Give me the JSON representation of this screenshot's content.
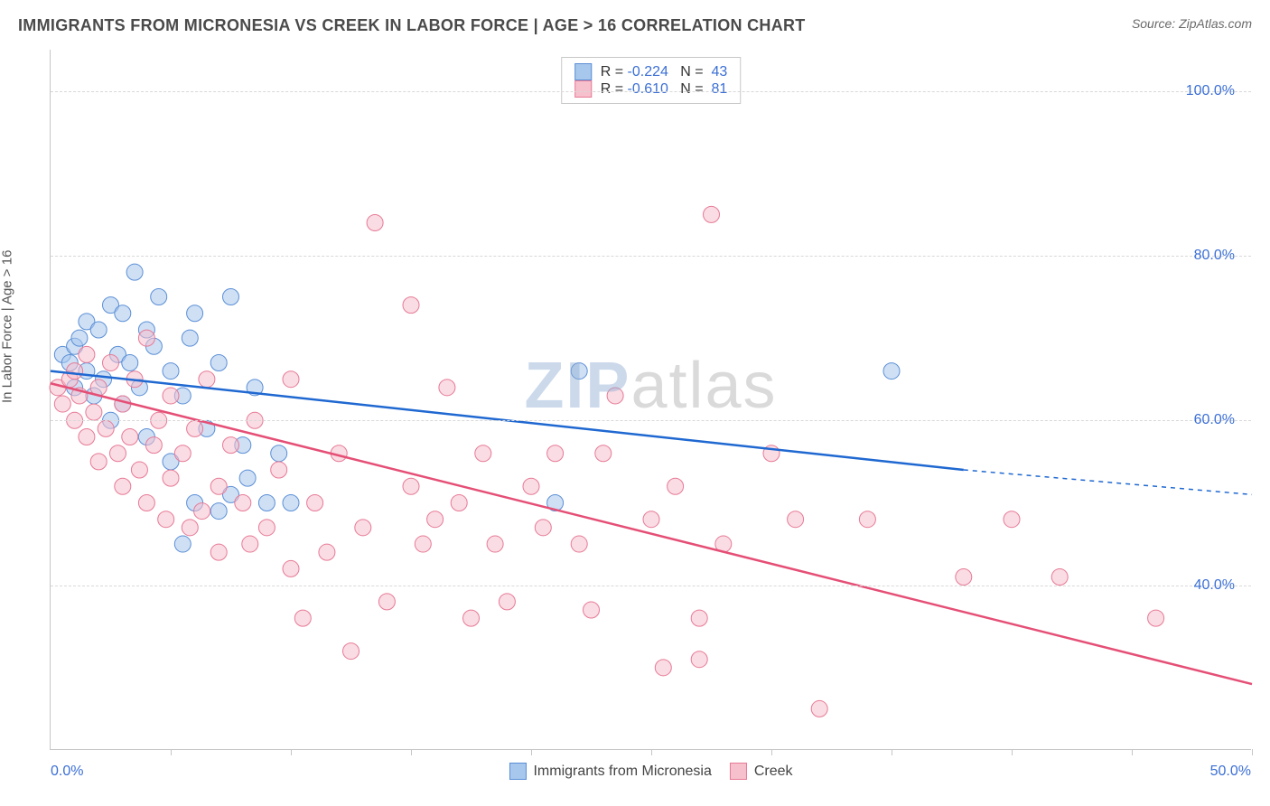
{
  "title": "IMMIGRANTS FROM MICRONESIA VS CREEK IN LABOR FORCE | AGE > 16 CORRELATION CHART",
  "source": "Source: ZipAtlas.com",
  "y_axis_label": "In Labor Force | Age > 16",
  "watermark": {
    "bold": "ZIP",
    "rest": "atlas"
  },
  "chart": {
    "type": "scatter",
    "background_color": "#ffffff",
    "grid_color": "#d8d8d8",
    "axis_color": "#c6c6c6",
    "label_color": "#3b6fd6",
    "xlim": [
      0,
      50
    ],
    "ylim": [
      20,
      105
    ],
    "xtick_positions": [
      0,
      5,
      10,
      15,
      20,
      25,
      30,
      35,
      40,
      45,
      50
    ],
    "xtick_labels": {
      "left": "0.0%",
      "right": "50.0%"
    },
    "yticks": [
      {
        "v": 40,
        "label": "40.0%"
      },
      {
        "v": 60,
        "label": "60.0%"
      },
      {
        "v": 80,
        "label": "80.0%"
      },
      {
        "v": 100,
        "label": "100.0%"
      }
    ],
    "marker_radius": 9,
    "marker_opacity": 0.55,
    "line_width": 2.5,
    "series": [
      {
        "name": "Immigrants from Micronesia",
        "color_fill": "#a7c7ec",
        "color_stroke": "#5b8fd6",
        "line_color": "#1f68d1",
        "R": "-0.224",
        "N": "43",
        "regression": {
          "x1": 0,
          "y1": 66,
          "x2": 38,
          "y2": 54,
          "dash_x2": 50,
          "dash_y2": 51
        },
        "points": [
          [
            0.5,
            68
          ],
          [
            0.8,
            67
          ],
          [
            1,
            69
          ],
          [
            1,
            64
          ],
          [
            1.2,
            70
          ],
          [
            1.5,
            72
          ],
          [
            1.5,
            66
          ],
          [
            1.8,
            63
          ],
          [
            2,
            71
          ],
          [
            2.2,
            65
          ],
          [
            2.5,
            74
          ],
          [
            2.5,
            60
          ],
          [
            2.8,
            68
          ],
          [
            3,
            73
          ],
          [
            3,
            62
          ],
          [
            3.3,
            67
          ],
          [
            3.5,
            78
          ],
          [
            3.7,
            64
          ],
          [
            4,
            71
          ],
          [
            4,
            58
          ],
          [
            4.3,
            69
          ],
          [
            4.5,
            75
          ],
          [
            5,
            66
          ],
          [
            5,
            55
          ],
          [
            5.5,
            63
          ],
          [
            5.8,
            70
          ],
          [
            6,
            73
          ],
          [
            6,
            50
          ],
          [
            6.5,
            59
          ],
          [
            7,
            67
          ],
          [
            7.5,
            75
          ],
          [
            8,
            57
          ],
          [
            8.2,
            53
          ],
          [
            8.5,
            64
          ],
          [
            9,
            50
          ],
          [
            9.5,
            56
          ],
          [
            10,
            50
          ],
          [
            5.5,
            45
          ],
          [
            7,
            49
          ],
          [
            7.5,
            51
          ],
          [
            22,
            66
          ],
          [
            21,
            50
          ],
          [
            35,
            66
          ]
        ]
      },
      {
        "name": "Creek",
        "color_fill": "#f6c0cd",
        "color_stroke": "#e77a96",
        "line_color": "#e54f76",
        "R": "-0.610",
        "N": "81",
        "regression": {
          "x1": 0,
          "y1": 64.5,
          "x2": 50,
          "y2": 28
        },
        "points": [
          [
            0.3,
            64
          ],
          [
            0.5,
            62
          ],
          [
            0.8,
            65
          ],
          [
            1,
            66
          ],
          [
            1,
            60
          ],
          [
            1.2,
            63
          ],
          [
            1.5,
            68
          ],
          [
            1.5,
            58
          ],
          [
            1.8,
            61
          ],
          [
            2,
            64
          ],
          [
            2,
            55
          ],
          [
            2.3,
            59
          ],
          [
            2.5,
            67
          ],
          [
            2.8,
            56
          ],
          [
            3,
            62
          ],
          [
            3,
            52
          ],
          [
            3.3,
            58
          ],
          [
            3.5,
            65
          ],
          [
            3.7,
            54
          ],
          [
            4,
            70
          ],
          [
            4,
            50
          ],
          [
            4.3,
            57
          ],
          [
            4.5,
            60
          ],
          [
            4.8,
            48
          ],
          [
            5,
            63
          ],
          [
            5,
            53
          ],
          [
            5.5,
            56
          ],
          [
            5.8,
            47
          ],
          [
            6,
            59
          ],
          [
            6.3,
            49
          ],
          [
            6.5,
            65
          ],
          [
            7,
            52
          ],
          [
            7,
            44
          ],
          [
            7.5,
            57
          ],
          [
            8,
            50
          ],
          [
            8.3,
            45
          ],
          [
            8.5,
            60
          ],
          [
            9,
            47
          ],
          [
            9.5,
            54
          ],
          [
            10,
            65
          ],
          [
            10,
            42
          ],
          [
            10.5,
            36
          ],
          [
            11,
            50
          ],
          [
            11.5,
            44
          ],
          [
            12,
            56
          ],
          [
            12.5,
            32
          ],
          [
            13,
            47
          ],
          [
            13.5,
            84
          ],
          [
            14,
            38
          ],
          [
            15,
            52
          ],
          [
            15,
            74
          ],
          [
            15.5,
            45
          ],
          [
            16,
            48
          ],
          [
            16.5,
            64
          ],
          [
            17,
            50
          ],
          [
            17.5,
            36
          ],
          [
            18,
            56
          ],
          [
            18.5,
            45
          ],
          [
            19,
            38
          ],
          [
            20,
            52
          ],
          [
            20.5,
            47
          ],
          [
            21,
            56
          ],
          [
            22,
            45
          ],
          [
            22.5,
            37
          ],
          [
            23,
            56
          ],
          [
            23.5,
            63
          ],
          [
            25,
            48
          ],
          [
            25.5,
            30
          ],
          [
            26,
            52
          ],
          [
            27,
            36
          ],
          [
            27.5,
            85
          ],
          [
            28,
            45
          ],
          [
            27,
            31
          ],
          [
            30,
            56
          ],
          [
            31,
            48
          ],
          [
            32,
            25
          ],
          [
            34,
            48
          ],
          [
            38,
            41
          ],
          [
            40,
            48
          ],
          [
            42,
            41
          ],
          [
            46,
            36
          ]
        ]
      }
    ]
  },
  "x_legend": [
    {
      "label": "Immigrants from Micronesia",
      "fill": "#a7c7ec",
      "stroke": "#5b8fd6"
    },
    {
      "label": "Creek",
      "fill": "#f6c0cd",
      "stroke": "#e77a96"
    }
  ]
}
